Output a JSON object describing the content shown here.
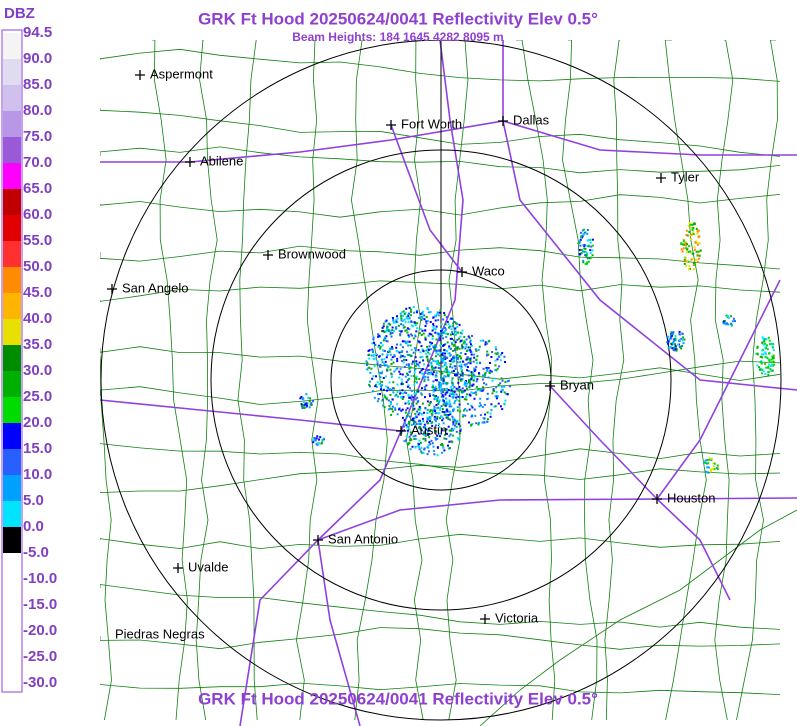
{
  "header": {
    "title": "GRK Ft Hood 20250624/0041 Reflectivity Elev 0.5°",
    "subtitle": "Beam Heights: 184 1645 4282 8095 m",
    "footer": "GRK Ft Hood 20250624/0041 Reflectivity Elev 0.5°"
  },
  "legend": {
    "title": "DBZ",
    "labels": [
      "94.5",
      "90.0",
      "85.0",
      "80.0",
      "75.0",
      "70.0",
      "65.0",
      "60.0",
      "55.0",
      "50.0",
      "45.0",
      "40.0",
      "35.0",
      "30.0",
      "25.0",
      "20.0",
      "15.0",
      "10.0",
      "5.0",
      "0.0",
      "-5.0",
      "-10.0",
      "-15.0",
      "-20.0",
      "-25.0",
      "-30.0"
    ]
  },
  "cities": [
    "Aspermont",
    "Fort Worth",
    "Dallas",
    "Abilene",
    "Tyler",
    "Brownwood",
    "Waco",
    "San Angelo",
    "Bryan",
    "Austin",
    "Houston",
    "San Antonio",
    "Uvalde",
    "Victoria",
    "Piedras Negras"
  ]
}
